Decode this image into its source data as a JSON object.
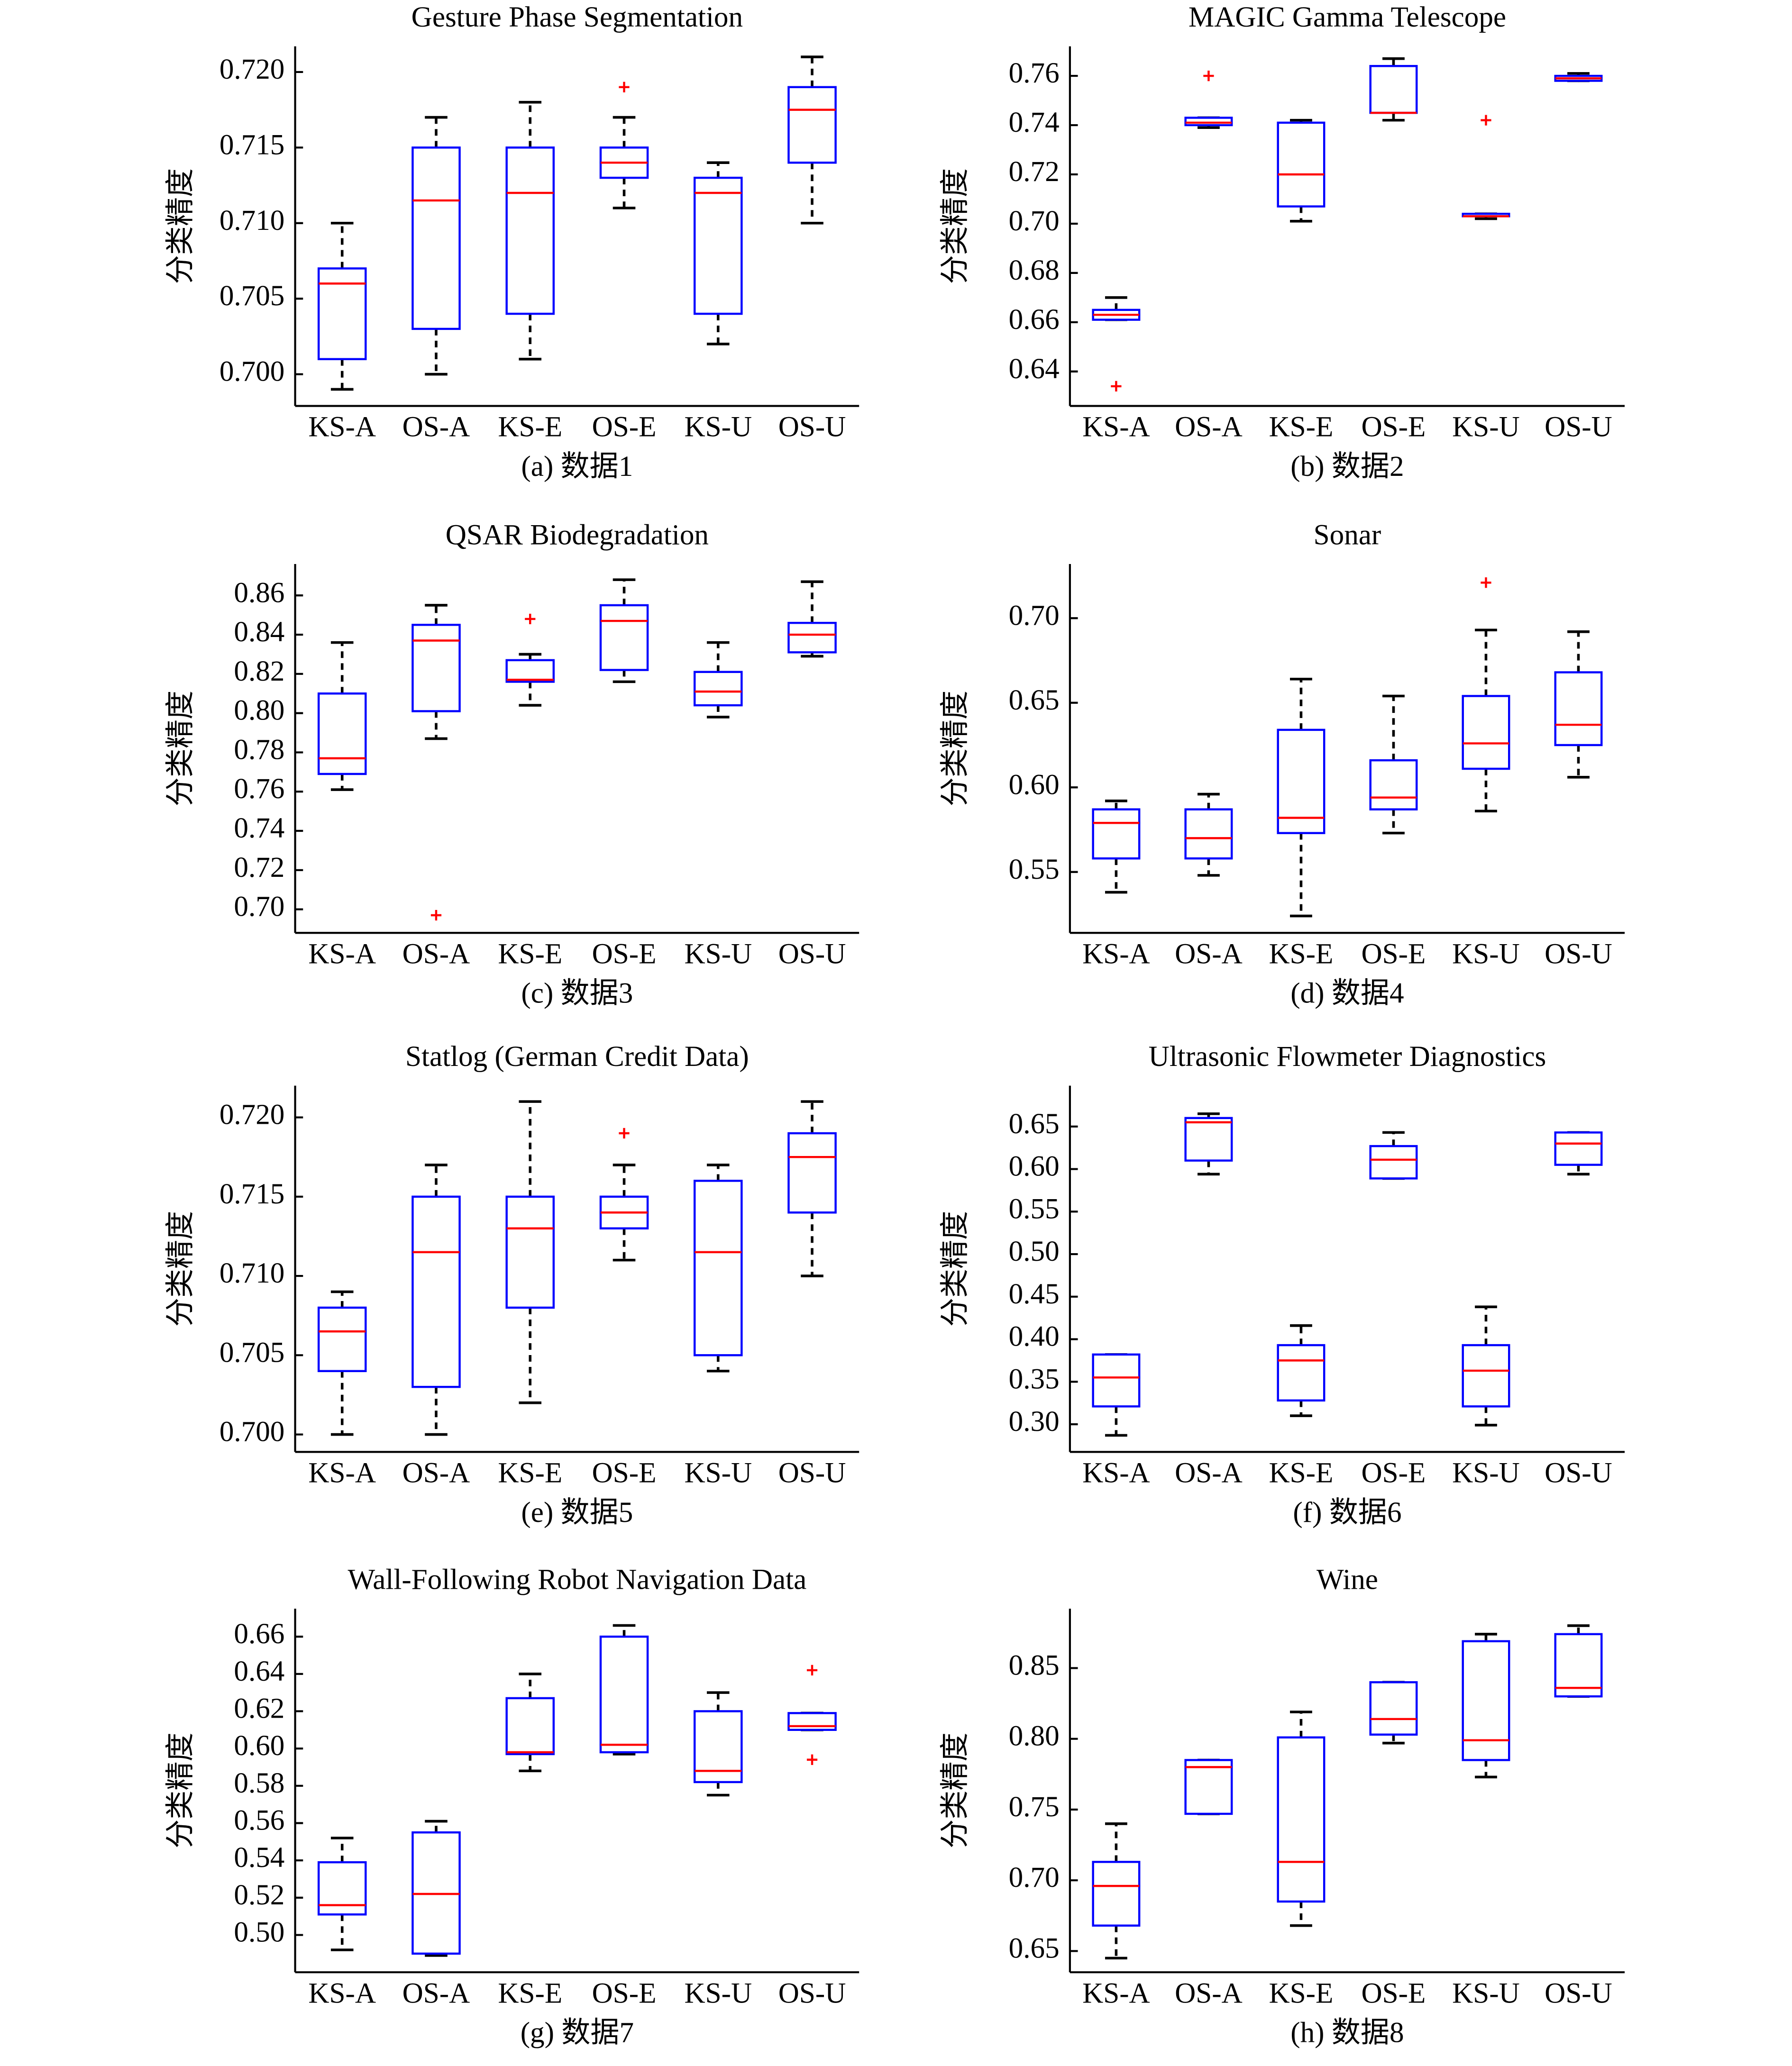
{
  "chart_data": [
    {
      "type": "box",
      "title": "Gesture Phase Segmentation",
      "caption": "(a) 数据1",
      "ylabel": "分类精度",
      "categories": [
        "KS-A",
        "OS-A",
        "KS-E",
        "OS-E",
        "KS-U",
        "OS-U"
      ],
      "ylim": [
        0.6979,
        0.7217
      ],
      "yticks": [
        {
          "value": 0.7,
          "label": "0.700"
        },
        0.705,
        {
          "value": 0.71,
          "label": "0.710"
        },
        0.715,
        {
          "value": 0.72,
          "label": "0.720"
        }
      ],
      "boxes": [
        {
          "low": 0.699,
          "q1": 0.701,
          "median": 0.706,
          "q3": 0.707,
          "high": 0.71
        },
        {
          "low": 0.7,
          "q1": 0.703,
          "median": 0.7115,
          "q3": 0.715,
          "high": 0.717
        },
        {
          "low": 0.701,
          "q1": 0.704,
          "median": 0.712,
          "q3": 0.715,
          "high": 0.718
        },
        {
          "low": 0.711,
          "q1": 0.713,
          "median": 0.714,
          "q3": 0.715,
          "high": 0.717,
          "outliers": [
            0.719
          ]
        },
        {
          "low": 0.702,
          "q1": 0.704,
          "median": 0.712,
          "q3": 0.713,
          "high": 0.714
        },
        {
          "low": 0.71,
          "q1": 0.714,
          "median": 0.7175,
          "q3": 0.719,
          "high": 0.721
        }
      ]
    },
    {
      "type": "box",
      "title": "MAGIC Gamma Telescope",
      "caption": "(b) 数据2",
      "ylabel": "分类精度",
      "categories": [
        "KS-A",
        "OS-A",
        "KS-E",
        "OS-E",
        "KS-U",
        "OS-U"
      ],
      "ylim": [
        0.626,
        0.772
      ],
      "yticks": [
        0.64,
        0.66,
        0.68,
        {
          "value": 0.7,
          "label": "0.70"
        },
        0.72,
        0.74,
        0.76
      ],
      "boxes": [
        {
          "low": 0.661,
          "q1": 0.661,
          "median": 0.663,
          "q3": 0.665,
          "high": 0.67,
          "outliers": [
            0.634
          ]
        },
        {
          "low": 0.739,
          "q1": 0.74,
          "median": 0.741,
          "q3": 0.743,
          "high": 0.743,
          "outliers": [
            0.76
          ]
        },
        {
          "low": 0.701,
          "q1": 0.707,
          "median": 0.72,
          "q3": 0.741,
          "high": 0.742
        },
        {
          "low": 0.742,
          "q1": 0.745,
          "median": 0.745,
          "q3": 0.764,
          "high": 0.767
        },
        {
          "low": 0.702,
          "q1": 0.703,
          "median": 0.703,
          "q3": 0.704,
          "high": 0.704,
          "outliers": [
            0.742
          ]
        },
        {
          "low": 0.758,
          "q1": 0.758,
          "median": 0.759,
          "q3": 0.76,
          "high": 0.761
        }
      ]
    },
    {
      "type": "box",
      "title": "QSAR Biodegradation",
      "caption": "(c) 数据3",
      "ylabel": "分类精度",
      "categories": [
        "KS-A",
        "OS-A",
        "KS-E",
        "OS-E",
        "KS-U",
        "OS-U"
      ],
      "ylim": [
        0.688,
        0.876
      ],
      "yticks": [
        {
          "value": 0.7,
          "label": "0.70"
        },
        0.72,
        0.74,
        0.76,
        0.78,
        {
          "value": 0.8,
          "label": "0.80"
        },
        0.82,
        0.84,
        0.86
      ],
      "boxes": [
        {
          "low": 0.761,
          "q1": 0.769,
          "median": 0.777,
          "q3": 0.81,
          "high": 0.836
        },
        {
          "low": 0.787,
          "q1": 0.801,
          "median": 0.837,
          "q3": 0.845,
          "high": 0.855,
          "outliers": [
            0.697
          ]
        },
        {
          "low": 0.804,
          "q1": 0.816,
          "median": 0.817,
          "q3": 0.827,
          "high": 0.83,
          "outliers": [
            0.848
          ]
        },
        {
          "low": 0.816,
          "q1": 0.822,
          "median": 0.847,
          "q3": 0.855,
          "high": 0.868
        },
        {
          "low": 0.798,
          "q1": 0.804,
          "median": 0.811,
          "q3": 0.821,
          "high": 0.836
        },
        {
          "low": 0.829,
          "q1": 0.831,
          "median": 0.84,
          "q3": 0.846,
          "high": 0.867
        }
      ]
    },
    {
      "type": "box",
      "title": "Sonar",
      "caption": "(d) 数据4",
      "ylabel": "分类精度",
      "categories": [
        "KS-A",
        "OS-A",
        "KS-E",
        "OS-E",
        "KS-U",
        "OS-U"
      ],
      "ylim": [
        0.514,
        0.732
      ],
      "yticks": [
        0.55,
        {
          "value": 0.6,
          "label": "0.60"
        },
        0.65,
        {
          "value": 0.7,
          "label": "0.70"
        }
      ],
      "boxes": [
        {
          "low": 0.538,
          "q1": 0.558,
          "median": 0.579,
          "q3": 0.587,
          "high": 0.592
        },
        {
          "low": 0.548,
          "q1": 0.558,
          "median": 0.57,
          "q3": 0.587,
          "high": 0.596
        },
        {
          "low": 0.524,
          "q1": 0.573,
          "median": 0.582,
          "q3": 0.634,
          "high": 0.664
        },
        {
          "low": 0.573,
          "q1": 0.587,
          "median": 0.594,
          "q3": 0.616,
          "high": 0.654
        },
        {
          "low": 0.586,
          "q1": 0.611,
          "median": 0.626,
          "q3": 0.654,
          "high": 0.693,
          "outliers": [
            0.721
          ]
        },
        {
          "low": 0.606,
          "q1": 0.625,
          "median": 0.637,
          "q3": 0.668,
          "high": 0.692
        }
      ]
    },
    {
      "type": "box",
      "title": "Statlog (German Credit Data)",
      "caption": "(e) 数据5",
      "ylabel": "分类精度",
      "categories": [
        "KS-A",
        "OS-A",
        "KS-E",
        "OS-E",
        "KS-U",
        "OS-U"
      ],
      "ylim": [
        0.6989,
        0.722
      ],
      "yticks": [
        {
          "value": 0.7,
          "label": "0.700"
        },
        0.705,
        {
          "value": 0.71,
          "label": "0.710"
        },
        0.715,
        {
          "value": 0.72,
          "label": "0.720"
        }
      ],
      "boxes": [
        {
          "low": 0.7,
          "q1": 0.704,
          "median": 0.7065,
          "q3": 0.708,
          "high": 0.709
        },
        {
          "low": 0.7,
          "q1": 0.703,
          "median": 0.7115,
          "q3": 0.715,
          "high": 0.717
        },
        {
          "low": 0.702,
          "q1": 0.708,
          "median": 0.713,
          "q3": 0.715,
          "high": 0.721
        },
        {
          "low": 0.711,
          "q1": 0.713,
          "median": 0.714,
          "q3": 0.715,
          "high": 0.717,
          "outliers": [
            0.719
          ]
        },
        {
          "low": 0.704,
          "q1": 0.705,
          "median": 0.7115,
          "q3": 0.716,
          "high": 0.717
        },
        {
          "low": 0.71,
          "q1": 0.714,
          "median": 0.7175,
          "q3": 0.719,
          "high": 0.721
        }
      ]
    },
    {
      "type": "box",
      "title": "Ultrasonic Flowmeter Diagnostics",
      "caption": "(f) 数据6",
      "ylabel": "分类精度",
      "categories": [
        "KS-A",
        "OS-A",
        "KS-E",
        "OS-E",
        "KS-U",
        "OS-U"
      ],
      "ylim": [
        0.2675,
        0.698
      ],
      "yticks": [
        {
          "value": 0.3,
          "label": "0.30"
        },
        0.35,
        {
          "value": 0.4,
          "label": "0.40"
        },
        0.45,
        {
          "value": 0.5,
          "label": "0.50"
        },
        0.55,
        {
          "value": 0.6,
          "label": "0.60"
        },
        0.65
      ],
      "boxes": [
        {
          "low": 0.287,
          "q1": 0.321,
          "median": 0.355,
          "q3": 0.382,
          "high": 0.382
        },
        {
          "low": 0.594,
          "q1": 0.61,
          "median": 0.655,
          "q3": 0.66,
          "high": 0.665
        },
        {
          "low": 0.31,
          "q1": 0.328,
          "median": 0.375,
          "q3": 0.393,
          "high": 0.416
        },
        {
          "low": 0.589,
          "q1": 0.589,
          "median": 0.611,
          "q3": 0.627,
          "high": 0.643
        },
        {
          "low": 0.299,
          "q1": 0.321,
          "median": 0.363,
          "q3": 0.393,
          "high": 0.438
        },
        {
          "low": 0.594,
          "q1": 0.605,
          "median": 0.63,
          "q3": 0.643,
          "high": 0.643
        }
      ]
    },
    {
      "type": "box",
      "title": "Wall-Following Robot Navigation Data",
      "caption": "(g) 数据7",
      "ylabel": "分类精度",
      "categories": [
        "KS-A",
        "OS-A",
        "KS-E",
        "OS-E",
        "KS-U",
        "OS-U"
      ],
      "ylim": [
        0.48,
        0.675
      ],
      "yticks": [
        {
          "value": 0.5,
          "label": "0.50"
        },
        0.52,
        0.54,
        0.56,
        0.58,
        {
          "value": 0.6,
          "label": "0.60"
        },
        0.62,
        0.64,
        0.66
      ],
      "boxes": [
        {
          "low": 0.492,
          "q1": 0.511,
          "median": 0.516,
          "q3": 0.539,
          "high": 0.552
        },
        {
          "low": 0.489,
          "q1": 0.49,
          "median": 0.522,
          "q3": 0.555,
          "high": 0.561
        },
        {
          "low": 0.588,
          "q1": 0.597,
          "median": 0.598,
          "q3": 0.627,
          "high": 0.64
        },
        {
          "low": 0.597,
          "q1": 0.598,
          "median": 0.602,
          "q3": 0.66,
          "high": 0.666
        },
        {
          "low": 0.575,
          "q1": 0.582,
          "median": 0.588,
          "q3": 0.62,
          "high": 0.63
        },
        {
          "low": 0.61,
          "q1": 0.61,
          "median": 0.612,
          "q3": 0.619,
          "high": 0.619,
          "outliers": [
            0.642,
            0.594
          ]
        }
      ]
    },
    {
      "type": "box",
      "title": "Wine",
      "caption": "(h) 数据8",
      "ylabel": "分类精度",
      "categories": [
        "KS-A",
        "OS-A",
        "KS-E",
        "OS-E",
        "KS-U",
        "OS-U"
      ],
      "ylim": [
        0.635,
        0.892
      ],
      "yticks": [
        0.65,
        {
          "value": 0.7,
          "label": "0.70"
        },
        0.75,
        {
          "value": 0.8,
          "label": "0.80"
        },
        0.85
      ],
      "boxes": [
        {
          "low": 0.645,
          "q1": 0.668,
          "median": 0.696,
          "q3": 0.713,
          "high": 0.74
        },
        {
          "low": 0.747,
          "q1": 0.747,
          "median": 0.78,
          "q3": 0.785,
          "high": 0.785
        },
        {
          "low": 0.668,
          "q1": 0.685,
          "median": 0.713,
          "q3": 0.801,
          "high": 0.819
        },
        {
          "low": 0.797,
          "q1": 0.803,
          "median": 0.814,
          "q3": 0.84,
          "high": 0.84
        },
        {
          "low": 0.773,
          "q1": 0.785,
          "median": 0.799,
          "q3": 0.869,
          "high": 0.874
        },
        {
          "low": 0.83,
          "q1": 0.83,
          "median": 0.836,
          "q3": 0.874,
          "high": 0.88
        }
      ]
    }
  ]
}
